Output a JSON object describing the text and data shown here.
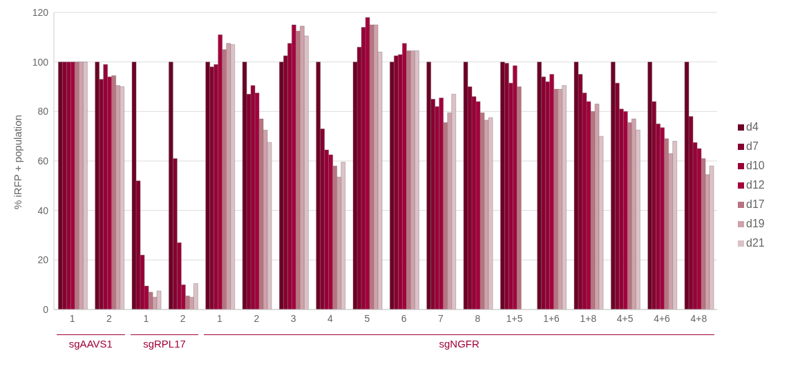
{
  "chart_data": {
    "type": "bar",
    "ylabel": "% iRFP + population",
    "categories": [
      "1",
      "2",
      "1",
      "2",
      "1",
      "2",
      "3",
      "4",
      "5",
      "6",
      "7",
      "8",
      "1+5",
      "1+6",
      "1+8",
      "4+5",
      "4+6",
      "4+8"
    ],
    "series": [
      {
        "name": "d4",
        "color": "#6b0024",
        "values": [
          100,
          100,
          100,
          100,
          100,
          100,
          100,
          100,
          100,
          100,
          100,
          100,
          100,
          100,
          100,
          100,
          100,
          100
        ]
      },
      {
        "name": "d7",
        "color": "#850030",
        "values": [
          100,
          93,
          52,
          61,
          98,
          87,
          102.5,
          73,
          106,
          102.5,
          85,
          90,
          99.5,
          94,
          95,
          91.5,
          84,
          78
        ]
      },
      {
        "name": "d10",
        "color": "#960036",
        "values": [
          100,
          99,
          22,
          27,
          99,
          90.5,
          107.5,
          64.5,
          114,
          103,
          82,
          86,
          91.5,
          92,
          87.5,
          81,
          75,
          67.5
        ]
      },
      {
        "name": "d12",
        "color": "#a4003c",
        "values": [
          100,
          94,
          9.5,
          10,
          111,
          87.5,
          115,
          62.5,
          118,
          107.5,
          85.5,
          84,
          98.5,
          95,
          84,
          80,
          73.5,
          65
        ]
      },
      {
        "name": "d17",
        "color": "#b87480",
        "values": [
          100,
          94.5,
          7,
          5.5,
          105,
          77,
          112.5,
          58,
          115,
          104.5,
          75.5,
          79.5,
          90,
          89,
          80,
          75.5,
          69,
          61
        ]
      },
      {
        "name": "d19",
        "color": "#cfa2ab",
        "values": [
          100,
          90.5,
          5,
          5,
          107.5,
          72.5,
          114.5,
          53.5,
          115,
          104.5,
          79.5,
          76.5,
          0,
          89,
          83,
          77,
          63,
          54.5
        ]
      },
      {
        "name": "d21",
        "color": "#dcc2c7",
        "values": [
          100,
          90,
          7.5,
          10.5,
          107,
          67.5,
          110.5,
          59.5,
          104,
          104.5,
          87,
          77.5,
          0,
          90.5,
          70,
          72.5,
          68,
          58
        ]
      }
    ],
    "ylim": [
      0,
      120
    ],
    "yticks": [
      0,
      20,
      40,
      60,
      80,
      100,
      120
    ],
    "grid": "y",
    "legend": "right",
    "annotations": [
      "sgAAVS1",
      "sgRPL17",
      "sgNGFR"
    ]
  }
}
